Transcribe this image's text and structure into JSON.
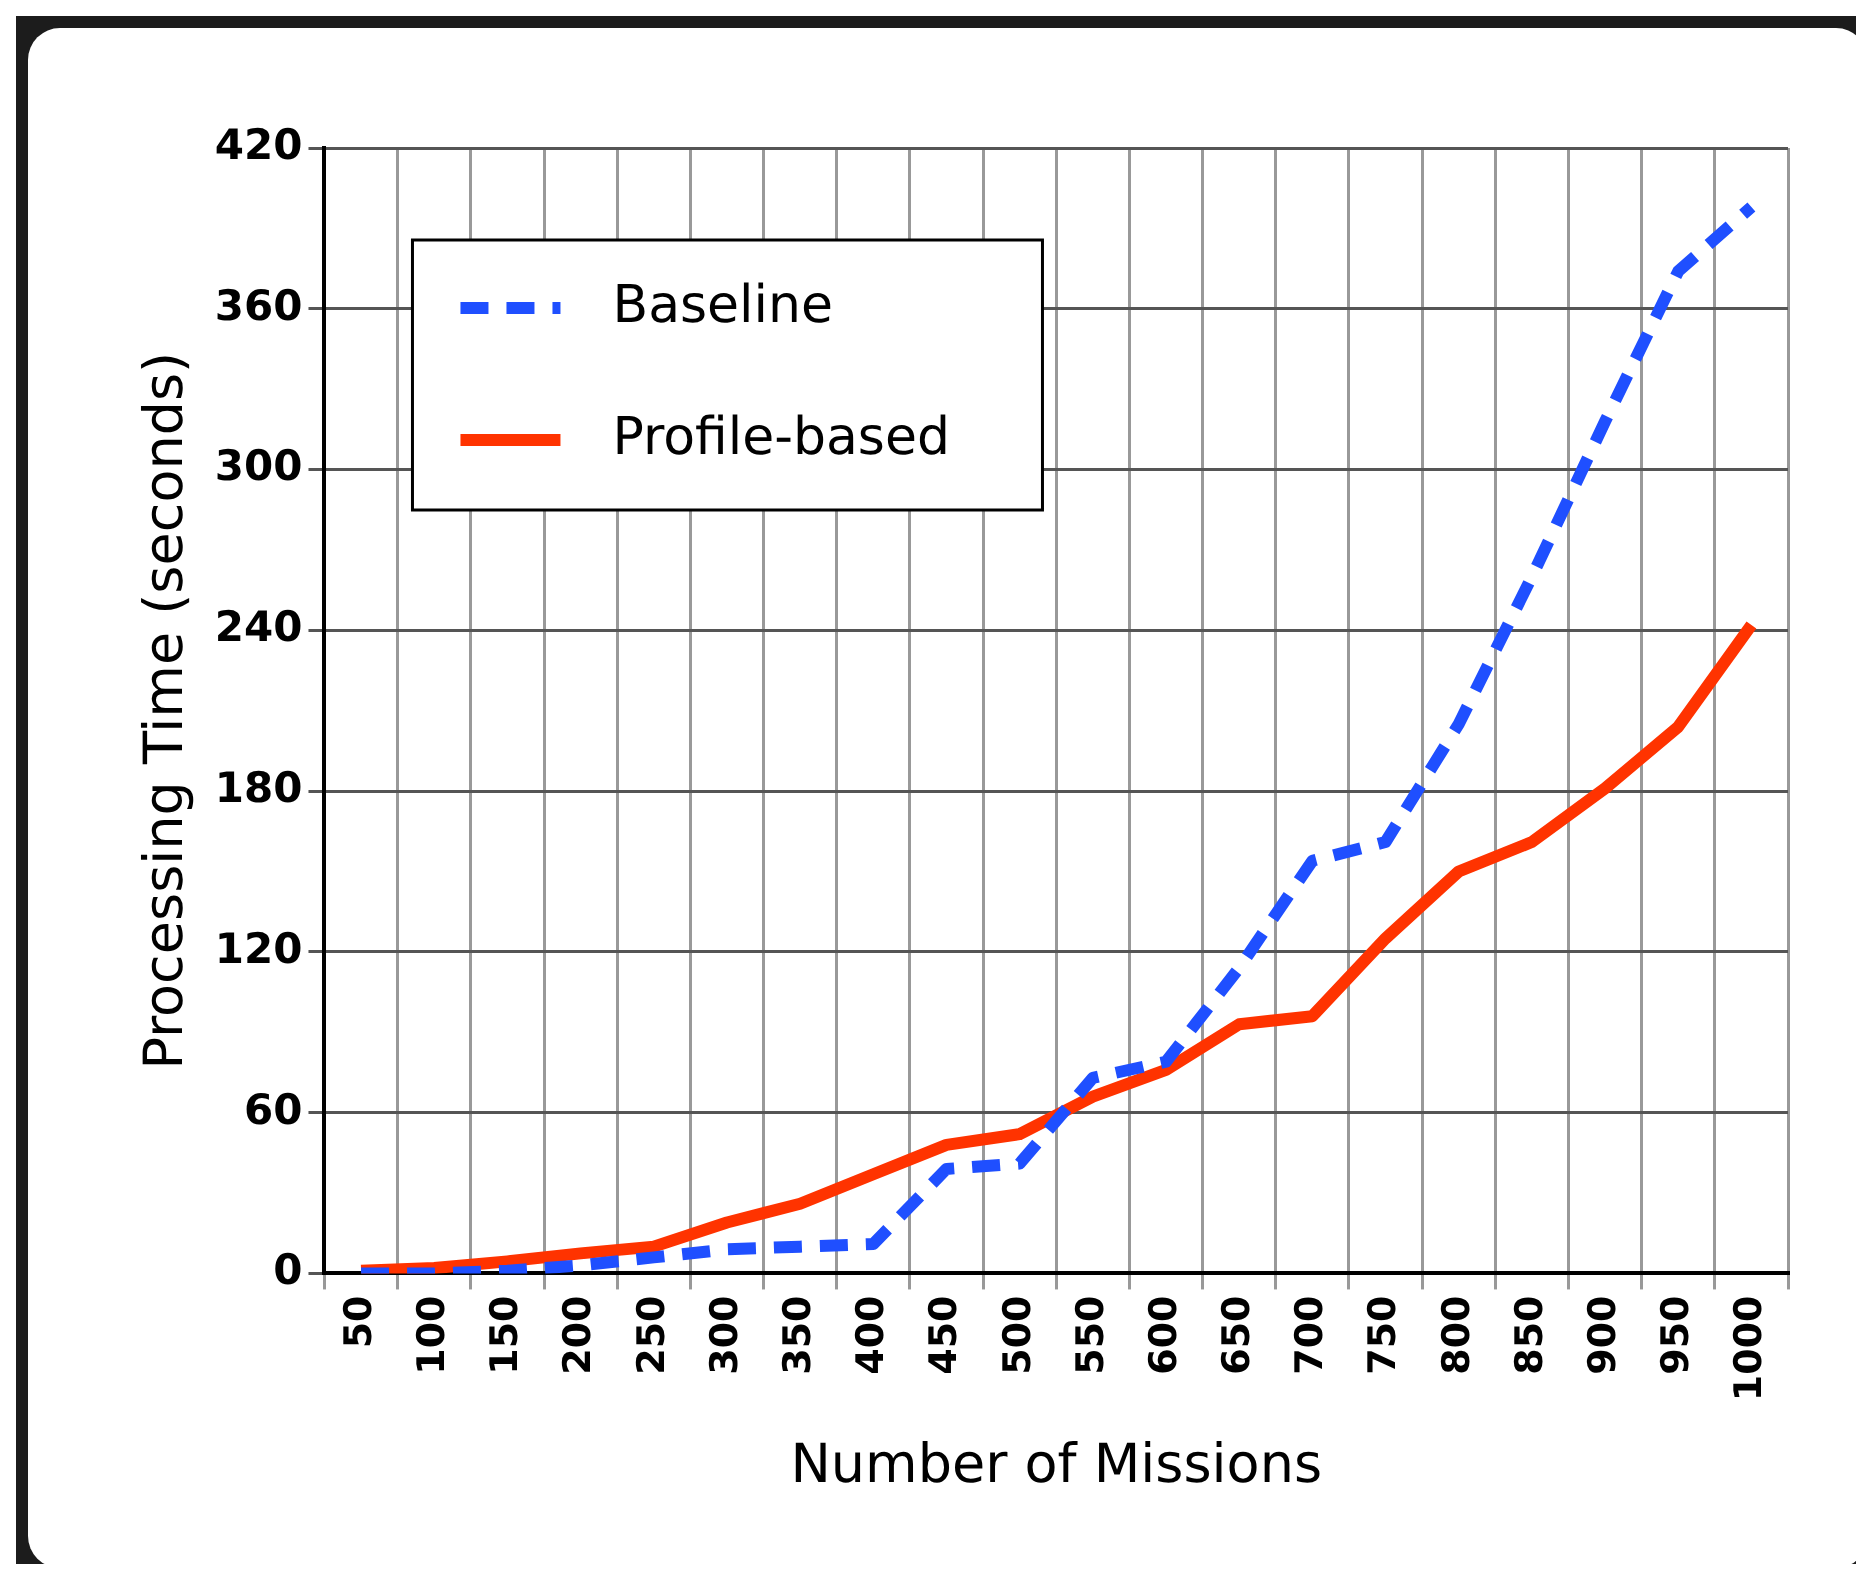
{
  "chart_data": {
    "type": "line",
    "xlabel": "Number of Missions",
    "ylabel": "Processing Time (seconds)",
    "categories": [
      "50",
      "100",
      "150",
      "200",
      "250",
      "300",
      "350",
      "400",
      "450",
      "500",
      "550",
      "600",
      "650",
      "700",
      "750",
      "800",
      "850",
      "900",
      "950",
      "1000"
    ],
    "series": [
      {
        "name": "Baseline",
        "color": "#1f4fff",
        "line_style": "dashed",
        "values": [
          0,
          0,
          1,
          3,
          6,
          9,
          10,
          11,
          39,
          41,
          73,
          79,
          114,
          154,
          161,
          205,
          260,
          318,
          374,
          398
        ]
      },
      {
        "name": "Profile-based",
        "color": "#ff3300",
        "line_style": "solid",
        "values": [
          1,
          2,
          4.5,
          7.5,
          10,
          19,
          26,
          37,
          48,
          52,
          66,
          76,
          93,
          96,
          125,
          150,
          161,
          181,
          204,
          242
        ]
      }
    ],
    "ylim": [
      0,
      420
    ],
    "yticks": [
      0,
      60,
      120,
      180,
      240,
      300,
      360,
      420
    ],
    "grid": true,
    "legend": "top left",
    "marker": "none"
  }
}
